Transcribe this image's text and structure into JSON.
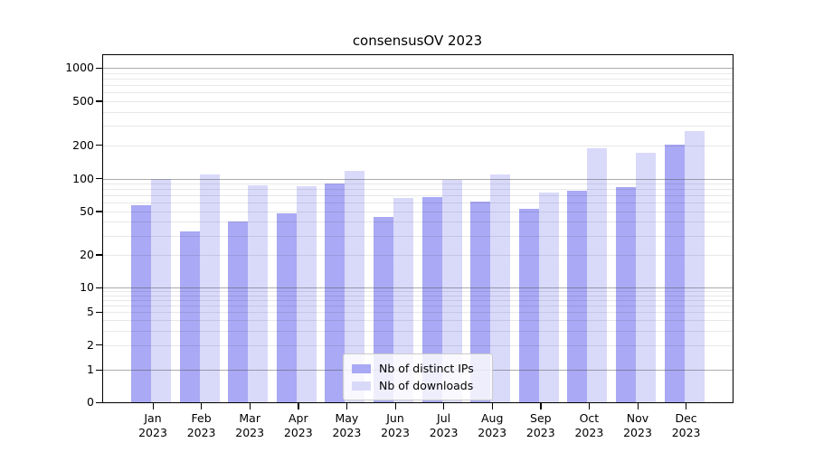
{
  "figure": {
    "title": "consensusOV 2023"
  },
  "chart_data": {
    "type": "bar",
    "title": "consensusOV 2023",
    "orientation": "vertical-grouped",
    "categories": [
      "Jan 2023",
      "Feb 2023",
      "Mar 2023",
      "Apr 2023",
      "May 2023",
      "Jun 2023",
      "Jul 2023",
      "Aug 2023",
      "Sep 2023",
      "Oct 2023",
      "Nov 2023",
      "Dec 2023"
    ],
    "series": [
      {
        "name": "Nb of distinct IPs",
        "color": "#a9a9f5",
        "values": [
          57,
          33,
          40,
          48,
          90,
          44,
          68,
          62,
          53,
          78,
          83,
          201
        ]
      },
      {
        "name": "Nb of downloads",
        "color": "#d9d9fa",
        "values": [
          100,
          108,
          87,
          85,
          117,
          66,
          98,
          108,
          75,
          188,
          170,
          267
        ]
      }
    ],
    "xlabel": "",
    "ylabel": "",
    "yscale": "symlog",
    "ylim": [
      0,
      1300
    ],
    "yticks": [
      0,
      1,
      2,
      5,
      10,
      20,
      50,
      100,
      200,
      500,
      1000
    ],
    "major_gridlines": [
      1,
      10,
      100,
      1000
    ],
    "grid": "horizontal major+minor",
    "legend_position": "lower center",
    "colors": {
      "distinct_ips": "#a9a9f5",
      "downloads": "#d9d9fa",
      "major_grid": "#b0b0b0",
      "minor_grid": "#e8e8e8",
      "spine": "#000000"
    }
  }
}
